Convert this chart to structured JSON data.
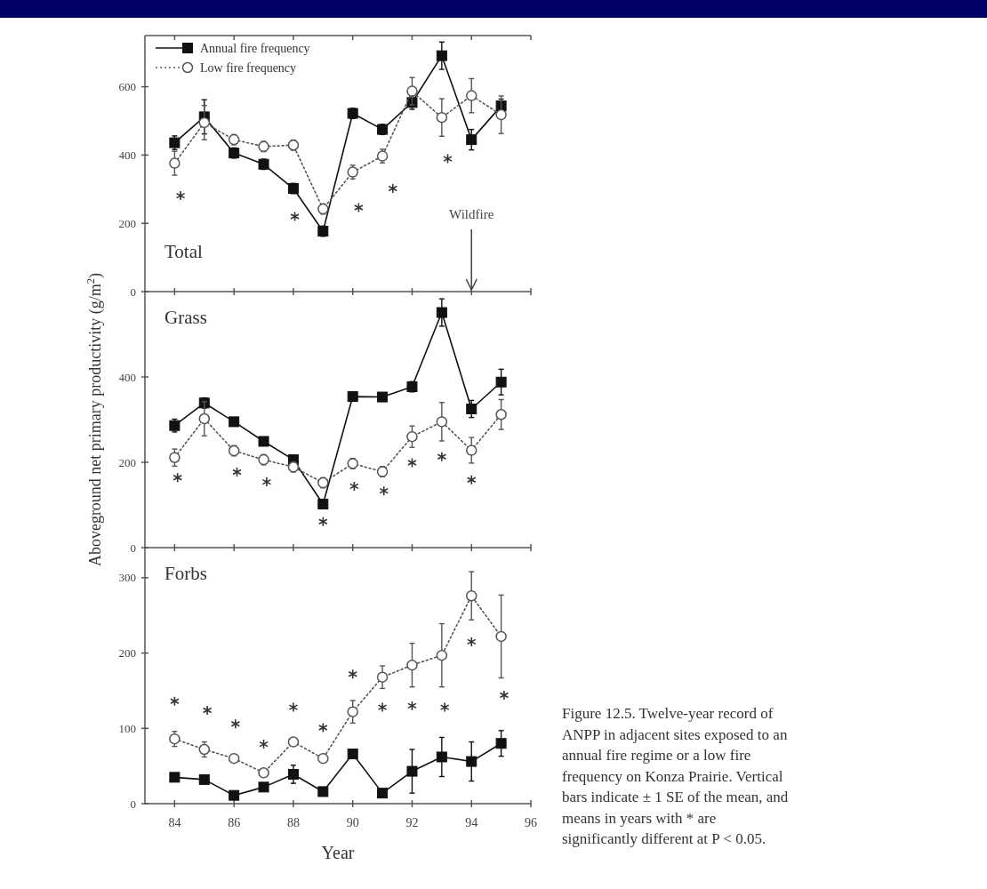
{
  "chart_data": [
    {
      "type": "line",
      "title": "Total",
      "xlim": [
        83,
        96
      ],
      "xticks": [
        84,
        86,
        88,
        90,
        92,
        94,
        96
      ],
      "ylim": [
        0,
        750
      ],
      "yticks": [
        0,
        200,
        400,
        600
      ],
      "tick_labels": "y",
      "legend": "top left",
      "grid": false,
      "x": [
        84,
        85,
        86,
        87,
        88,
        89,
        90,
        91,
        92,
        93,
        94,
        95
      ],
      "series": [
        {
          "name": "Annual fire frequency",
          "color": "#111111",
          "marker": "square",
          "line_style": "solid",
          "values": [
            436,
            512,
            406,
            373,
            302,
            177,
            522,
            475,
            554,
            691,
            445,
            544
          ],
          "errors": [
            20,
            50,
            15,
            15,
            15,
            15,
            15,
            15,
            20,
            40,
            30,
            20
          ]
        },
        {
          "name": "Low fire frequency",
          "color": "#555555",
          "marker": "circle",
          "line_style": "dotted",
          "values": [
            376,
            495,
            445,
            425,
            429,
            242,
            350,
            397,
            587,
            510,
            574,
            518
          ],
          "errors": [
            35,
            50,
            15,
            15,
            15,
            15,
            20,
            20,
            40,
            55,
            50,
            55
          ]
        },
        {
          "type": "scatter",
          "color": "#333333",
          "marker": "cross",
          "x": [
            84.2,
            88.05,
            90.2,
            91.35,
            93.2
          ],
          "values": [
            281,
            220,
            246,
            302,
            389
          ]
        }
      ],
      "ref_lines": [
        {
          "axis": "x",
          "value": 94,
          "label": "Wildfire",
          "color": "#444444"
        }
      ]
    },
    {
      "type": "line",
      "title": "Grass",
      "xlim": [
        83,
        96
      ],
      "xticks": [
        84,
        86,
        88,
        90,
        92,
        94,
        96
      ],
      "ylim": [
        0,
        600
      ],
      "yticks": [
        0,
        200,
        400
      ],
      "tick_labels": "y",
      "ylabel": "Aboveground net primary productivity (g/m$^{2}$)",
      "grid": false,
      "x": [
        84,
        85,
        86,
        87,
        88,
        89,
        90,
        91,
        92,
        93,
        94,
        95
      ],
      "series": [
        {
          "color": "#111111",
          "marker": "square",
          "line_style": "solid",
          "values": [
            286,
            339,
            295,
            249,
            206,
            102,
            354,
            353,
            377,
            551,
            325,
            388
          ],
          "errors": [
            15,
            12,
            10,
            10,
            10,
            10,
            10,
            10,
            12,
            32,
            20,
            30
          ]
        },
        {
          "color": "#555555",
          "marker": "circle",
          "line_style": "dotted",
          "values": [
            211,
            302,
            227,
            206,
            189,
            152,
            197,
            178,
            260,
            295,
            228,
            312
          ],
          "errors": [
            20,
            40,
            12,
            12,
            12,
            12,
            12,
            12,
            25,
            45,
            30,
            35
          ]
        },
        {
          "type": "scatter",
          "color": "#333333",
          "marker": "cross",
          "x": [
            84.1,
            86.1,
            87.1,
            89,
            90.05,
            91.05,
            92,
            93,
            94
          ],
          "values": [
            164,
            177,
            154,
            61,
            144,
            133,
            199,
            213,
            159
          ]
        }
      ]
    },
    {
      "type": "line",
      "title": "Forbs",
      "xlim": [
        83,
        96
      ],
      "xticks": [
        84,
        86,
        88,
        90,
        92,
        94,
        96
      ],
      "ylim": [
        0,
        340
      ],
      "yticks": [
        0,
        100,
        200,
        300
      ],
      "xlabel": "Year",
      "grid": false,
      "x": [
        84,
        85,
        86,
        87,
        88,
        89,
        90,
        91,
        92,
        93,
        94,
        95
      ],
      "series": [
        {
          "color": "#111111",
          "marker": "square",
          "line_style": "solid",
          "values": [
            35,
            32,
            11,
            22,
            39,
            16,
            66,
            14,
            43,
            62,
            56,
            80
          ],
          "errors": [
            5,
            5,
            5,
            5,
            12,
            5,
            5,
            5,
            29,
            26,
            26,
            17
          ]
        },
        {
          "color": "#555555",
          "marker": "circle",
          "line_style": "dotted",
          "values": [
            86,
            72,
            60,
            41,
            82,
            60,
            122,
            168,
            184,
            197,
            276,
            222
          ],
          "errors": [
            10,
            10,
            5,
            5,
            5,
            5,
            15,
            15,
            29,
            42,
            32,
            55
          ]
        },
        {
          "type": "scatter",
          "color": "#333333",
          "marker": "cross",
          "x": [
            84,
            85.1,
            86.05,
            87,
            88,
            89,
            90,
            91,
            92,
            93.1,
            94,
            95.1
          ],
          "values": [
            136,
            124,
            106,
            79,
            128,
            101,
            172,
            128,
            130,
            128,
            215,
            144
          ]
        }
      ],
      "annotations": [
        "Figure 12.5. Twelve-year record of ANPP in adjacent sites exposed to an annual fire regime or a low fire frequency on Konza Prairie. Vertical bars indicate ± 1 SE of the mean, and means in years with * are significantly different at P < 0.05."
      ]
    }
  ]
}
